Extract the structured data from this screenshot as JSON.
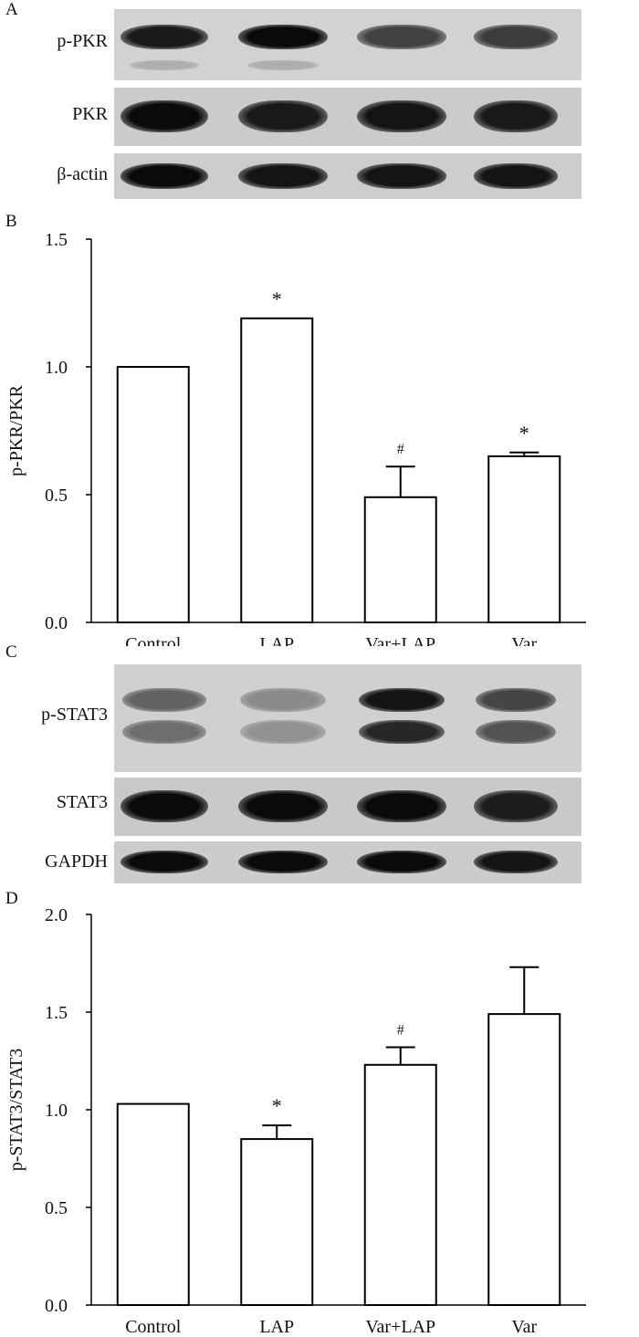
{
  "panels": {
    "A": {
      "letter": "A",
      "blots": [
        {
          "label": "p-PKR",
          "background": "#d2d2d2",
          "bands": [
            {
              "intensity": 0.92
            },
            {
              "intensity": 1.0
            },
            {
              "intensity": 0.72
            },
            {
              "intensity": 0.75
            }
          ],
          "extra": "faint-lower"
        },
        {
          "label": "PKR",
          "background": "#cbcbcb",
          "bands": [
            {
              "intensity": 1.0
            },
            {
              "intensity": 0.92
            },
            {
              "intensity": 0.95
            },
            {
              "intensity": 0.92
            }
          ]
        },
        {
          "label": "β-actin",
          "background": "#cdcdcd",
          "bands": [
            {
              "intensity": 1.0
            },
            {
              "intensity": 0.95
            },
            {
              "intensity": 0.95
            },
            {
              "intensity": 0.95
            }
          ]
        }
      ]
    },
    "C": {
      "letter": "C",
      "blots": [
        {
          "label": "p-STAT3",
          "background": "#d0d0d0",
          "bands": [
            {
              "intensity": 0.55
            },
            {
              "intensity": 0.35
            },
            {
              "intensity": 0.95
            },
            {
              "intensity": 0.7
            }
          ],
          "extra": "double"
        },
        {
          "label": "STAT3",
          "background": "#c9c9c9",
          "bands": [
            {
              "intensity": 1.0
            },
            {
              "intensity": 1.0
            },
            {
              "intensity": 1.0
            },
            {
              "intensity": 0.9
            }
          ]
        },
        {
          "label": "GAPDH",
          "background": "#cccccc",
          "bands": [
            {
              "intensity": 1.0
            },
            {
              "intensity": 1.0
            },
            {
              "intensity": 1.0
            },
            {
              "intensity": 0.95
            }
          ]
        }
      ]
    }
  },
  "chart_data": [
    {
      "panel": "B",
      "type": "bar",
      "categories": [
        "Control",
        "LAP",
        "Var+LAP",
        "Var"
      ],
      "values": [
        1.0,
        1.19,
        0.49,
        0.65
      ],
      "errors": [
        0,
        0,
        0.12,
        0.015
      ],
      "annotations": [
        "",
        "*",
        "#",
        "*"
      ],
      "ylabel": "p-PKR/PKR",
      "ylim": [
        0,
        1.5
      ],
      "yticks": [
        0.0,
        0.5,
        1.0,
        1.5
      ],
      "ytick_labels": [
        "0.0",
        "0.5",
        "1.0",
        "1.5"
      ],
      "grid": false,
      "bar_fill": "#ffffff",
      "bar_edge": "#000000"
    },
    {
      "panel": "D",
      "type": "bar",
      "categories": [
        "Control",
        "LAP",
        "Var+LAP",
        "Var"
      ],
      "values": [
        1.03,
        0.85,
        1.23,
        1.49
      ],
      "errors": [
        0,
        0.07,
        0.09,
        0.24
      ],
      "annotations": [
        "",
        "*",
        "#",
        ""
      ],
      "ylabel": "p-STAT3/STAT3",
      "ylim": [
        0,
        2.0
      ],
      "yticks": [
        0.0,
        0.5,
        1.0,
        1.5,
        2.0
      ],
      "ytick_labels": [
        "0.0",
        "0.5",
        "1.0",
        "1.5",
        "2.0"
      ],
      "grid": false,
      "bar_fill": "#ffffff",
      "bar_edge": "#000000"
    }
  ]
}
